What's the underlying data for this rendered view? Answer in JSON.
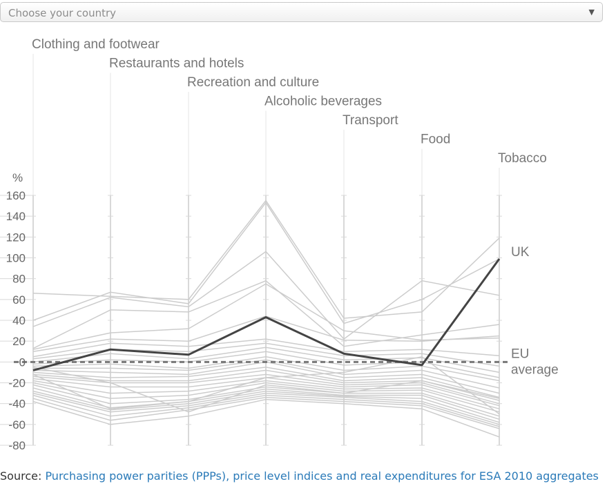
{
  "selector": {
    "placeholder": "Choose your country",
    "arrow_icon": "caret-down-icon"
  },
  "source": {
    "prefix": "Source: ",
    "link_text": "Purchasing power parities (PPPs), price level indices and real expenditures for ESA 2010 aggregates"
  },
  "colors": {
    "background_lines": "#cccccc",
    "highlight": "#444444",
    "eu_line": "#777777",
    "link": "#2a7ab8"
  },
  "chart_data": {
    "type": "parallel-coordinates",
    "unit_label": "%",
    "ylim": [
      -80,
      160
    ],
    "yticks": [
      160,
      140,
      120,
      100,
      80,
      60,
      40,
      20,
      0,
      -20,
      -40,
      -60,
      -80
    ],
    "categories": [
      "Clothing and footwear",
      "Restaurants and hotels",
      "Recreation and culture",
      "Alcoholic beverages",
      "Transport",
      "Food",
      "Tobacco"
    ],
    "highlight": {
      "name": "UK",
      "values": [
        -8,
        12,
        7,
        43,
        8,
        -3,
        99
      ]
    },
    "reference": {
      "name": "EU average",
      "label_line1": "EU",
      "label_line2": "average",
      "value": 0
    },
    "series": [
      [
        66,
        63,
        60,
        155,
        42,
        48,
        119
      ],
      [
        40,
        67,
        56,
        153,
        37,
        60,
        99
      ],
      [
        34,
        62,
        53,
        106,
        22,
        78,
        64
      ],
      [
        13,
        50,
        48,
        78,
        15,
        26,
        36
      ],
      [
        12,
        28,
        32,
        75,
        30,
        21,
        23
      ],
      [
        10,
        22,
        20,
        44,
        21,
        20,
        25
      ],
      [
        5,
        18,
        15,
        22,
        10,
        12,
        6
      ],
      [
        3,
        12,
        10,
        18,
        6,
        8,
        -4
      ],
      [
        0,
        8,
        3,
        14,
        2,
        4,
        -10
      ],
      [
        -2,
        2,
        0,
        10,
        -3,
        0,
        -15
      ],
      [
        -4,
        -2,
        -6,
        5,
        -8,
        -4,
        -18
      ],
      [
        -6,
        -6,
        -8,
        2,
        -12,
        -8,
        -25
      ],
      [
        -8,
        -10,
        -12,
        0,
        -15,
        -12,
        -30
      ],
      [
        -10,
        -15,
        -14,
        -5,
        -18,
        -15,
        -34
      ],
      [
        -12,
        -18,
        -18,
        -8,
        -20,
        -18,
        -37
      ],
      [
        -14,
        -20,
        -20,
        -12,
        -22,
        -20,
        -40
      ],
      [
        -16,
        -24,
        -24,
        -15,
        -24,
        -22,
        -42
      ],
      [
        -18,
        -30,
        -28,
        -18,
        -26,
        -25,
        -45
      ],
      [
        -20,
        -35,
        -32,
        -20,
        -28,
        -27,
        -48
      ],
      [
        -22,
        -40,
        -36,
        -24,
        -30,
        -30,
        -52
      ],
      [
        -25,
        -44,
        -38,
        -26,
        -32,
        -32,
        -55
      ],
      [
        -28,
        -46,
        -40,
        -28,
        -33,
        -35,
        -58
      ],
      [
        -30,
        -48,
        -42,
        -30,
        -34,
        -38,
        -60
      ],
      [
        -32,
        -52,
        -44,
        -32,
        -36,
        -40,
        -62
      ],
      [
        -35,
        -56,
        -46,
        -34,
        -38,
        -42,
        -64
      ],
      [
        -38,
        -60,
        -52,
        -36,
        -40,
        -45,
        -72
      ],
      [
        -5,
        -20,
        -48,
        -22,
        -30,
        -18,
        -35
      ],
      [
        -12,
        -45,
        -38,
        -15,
        -10,
        5,
        -50
      ]
    ]
  }
}
